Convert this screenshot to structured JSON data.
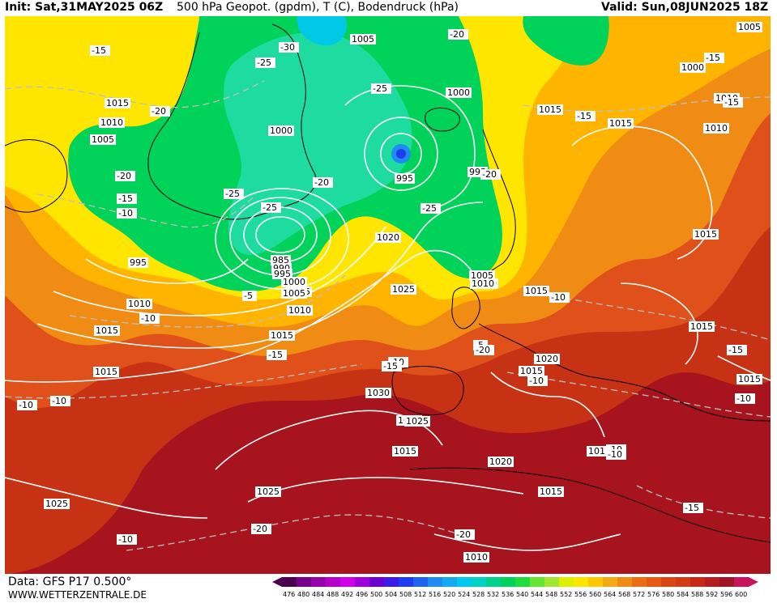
{
  "header": {
    "init": "Init: Sat,31MAY2025 06Z",
    "title": "500 hPa Geopot. (gpdm), T (C), Bodendruck (hPa)",
    "valid": "Valid: Sun,08JUN2025 18Z"
  },
  "footer": {
    "data_source": "Data: GFS P17 0.500°",
    "site": "WWW.WETTERZENTRALE.DE"
  },
  "colors": {
    "violet": "#5a0a6e",
    "blue": "#1e64e6",
    "cyan": "#00c8e6",
    "green": "#00d264",
    "yellow_green": "#b4e632",
    "yellow": "#ffe600",
    "orange": "#f0a014",
    "orange_red": "#e66414",
    "red": "#c83214",
    "dark_red": "#a0141e"
  },
  "legend": {
    "values": [
      "476",
      "480",
      "484",
      "488",
      "492",
      "496",
      "500",
      "504",
      "508",
      "512",
      "516",
      "520",
      "524",
      "528",
      "532",
      "536",
      "540",
      "544",
      "548",
      "552",
      "556",
      "560",
      "564",
      "568",
      "572",
      "576",
      "580",
      "584",
      "588",
      "592",
      "596",
      "600"
    ],
    "colors": [
      "#4b0050",
      "#78008c",
      "#9600aa",
      "#b400c8",
      "#d200e6",
      "#a000dc",
      "#6e00d2",
      "#3c1ee6",
      "#1e3cf0",
      "#1e64f0",
      "#1e8cf0",
      "#14aaf0",
      "#00c8f0",
      "#00d2c8",
      "#00d28c",
      "#00d25a",
      "#1edc3c",
      "#64e632",
      "#a0e632",
      "#dcf000",
      "#ffe600",
      "#ffc800",
      "#f5aa14",
      "#f08c14",
      "#eb6e14",
      "#e65a14",
      "#dc4614",
      "#d23c14",
      "#c82814",
      "#b41e1e",
      "#a01428",
      "#c8145a"
    ]
  },
  "isobars": [
    {
      "text": "1005"
    },
    {
      "text": "1015"
    },
    {
      "text": "1010"
    },
    {
      "text": "1005"
    },
    {
      "text": "995"
    },
    {
      "text": "1000"
    },
    {
      "text": "1005"
    },
    {
      "text": "1010"
    },
    {
      "text": "1015"
    },
    {
      "text": "1020"
    },
    {
      "text": "1025"
    },
    {
      "text": "1000"
    },
    {
      "text": "995"
    },
    {
      "text": "995"
    },
    {
      "text": "985"
    },
    {
      "text": "990"
    },
    {
      "text": "995"
    },
    {
      "text": "1000"
    },
    {
      "text": "1005"
    },
    {
      "text": "1010"
    },
    {
      "text": "1015"
    },
    {
      "text": "1015"
    },
    {
      "text": "1020"
    },
    {
      "text": "1025"
    },
    {
      "text": "1000"
    },
    {
      "text": "1015"
    },
    {
      "text": "1005"
    },
    {
      "text": "1010"
    },
    {
      "text": "1015"
    },
    {
      "text": "1015"
    },
    {
      "text": "1015"
    },
    {
      "text": "1015"
    },
    {
      "text": "1020"
    },
    {
      "text": "1015"
    },
    {
      "text": "1030"
    },
    {
      "text": "1025"
    },
    {
      "text": "1015"
    },
    {
      "text": "1020"
    },
    {
      "text": "1015"
    },
    {
      "text": "1015"
    },
    {
      "text": "1025"
    },
    {
      "text": "1025"
    },
    {
      "text": "1010"
    },
    {
      "text": "1010"
    },
    {
      "text": "1005"
    },
    {
      "text": "1015"
    },
    {
      "text": "1010"
    },
    {
      "text": "1010"
    }
  ],
  "temps": [
    {
      "text": "-15"
    },
    {
      "text": "-25"
    },
    {
      "text": "-30"
    },
    {
      "text": "-20"
    },
    {
      "text": "-25"
    },
    {
      "text": "-20"
    },
    {
      "text": "-20"
    },
    {
      "text": "-15"
    },
    {
      "text": "-10"
    },
    {
      "text": "-25"
    },
    {
      "text": "-20"
    },
    {
      "text": "-25"
    },
    {
      "text": "-20"
    },
    {
      "text": "-15"
    },
    {
      "text": "-15"
    },
    {
      "text": "-15"
    },
    {
      "text": "-15"
    },
    {
      "text": "-10"
    },
    {
      "text": "-10"
    },
    {
      "text": "-10"
    },
    {
      "text": "-10"
    },
    {
      "text": "-10"
    },
    {
      "text": "-10"
    },
    {
      "text": "-20"
    },
    {
      "text": "-20"
    },
    {
      "text": "-15"
    },
    {
      "text": "-10"
    },
    {
      "text": "-10"
    },
    {
      "text": "-10"
    },
    {
      "text": "-5"
    },
    {
      "text": "-5"
    },
    {
      "text": "-15"
    },
    {
      "text": "-15"
    },
    {
      "text": "-20"
    },
    {
      "text": "-25"
    },
    {
      "text": "-10"
    },
    {
      "text": "-10"
    }
  ]
}
